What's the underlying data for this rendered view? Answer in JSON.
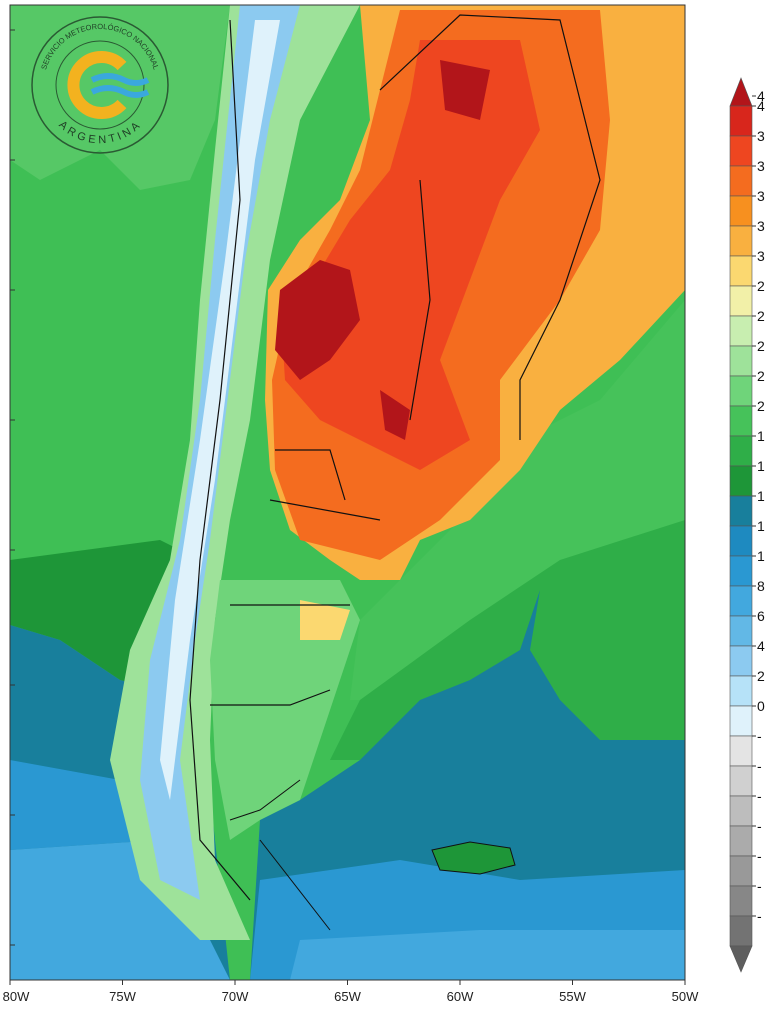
{
  "logo": {
    "agency": "SERVICIO METEOROLÓGICO NACIONAL",
    "country": "ARGENTINA"
  },
  "map": {
    "longitude_labels": [
      "80W",
      "75W",
      "70W",
      "65W",
      "60W",
      "55W",
      "50W"
    ]
  },
  "legend": {
    "items": [
      {
        "label": "4",
        "color": "#b2151a"
      },
      {
        "label": "4",
        "color": "#d8261c"
      },
      {
        "label": "3",
        "color": "#ee4620"
      },
      {
        "label": "3",
        "color": "#f46c1f"
      },
      {
        "label": "3",
        "color": "#f7901f"
      },
      {
        "label": "3",
        "color": "#f9b040"
      },
      {
        "label": "3",
        "color": "#fbd870"
      },
      {
        "label": "2",
        "color": "#f2f0a8"
      },
      {
        "label": "2",
        "color": "#c8eeb0"
      },
      {
        "label": "2",
        "color": "#9ee29a"
      },
      {
        "label": "2",
        "color": "#6fd47a"
      },
      {
        "label": "2",
        "color": "#46c25a"
      },
      {
        "label": "1",
        "color": "#2fae48"
      },
      {
        "label": "1",
        "color": "#1e9638"
      },
      {
        "label": "1",
        "color": "#187f9c"
      },
      {
        "label": "1",
        "color": "#1e8ac0"
      },
      {
        "label": "1",
        "color": "#2a98d2"
      },
      {
        "label": "8",
        "color": "#42a8de"
      },
      {
        "label": "6",
        "color": "#62b8e6"
      },
      {
        "label": "4",
        "color": "#8ccaf0"
      },
      {
        "label": "2",
        "color": "#b6e2f8"
      },
      {
        "label": "0",
        "color": "#dff2fb"
      },
      {
        "label": "-",
        "color": "#e4e4e4"
      },
      {
        "label": "-",
        "color": "#d0d0d0"
      },
      {
        "label": "-",
        "color": "#bdbdbd"
      },
      {
        "label": "-",
        "color": "#ababab"
      },
      {
        "label": "-",
        "color": "#999999"
      },
      {
        "label": "-",
        "color": "#878787"
      },
      {
        "label": "-",
        "color": "#737373"
      },
      {
        "label": "-",
        "color": "#5e5e5e"
      }
    ]
  }
}
